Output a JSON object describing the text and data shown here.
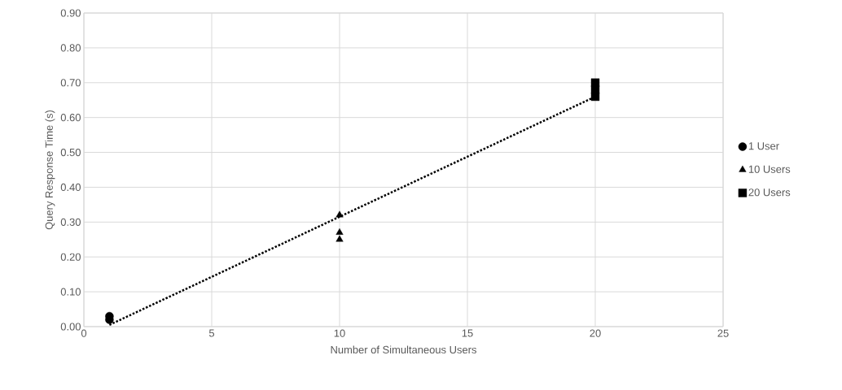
{
  "chart_data": {
    "type": "scatter",
    "xlabel": "Number of Simultaneous Users",
    "ylabel": "Query Response Time (s)",
    "series": [
      {
        "name": "1 User",
        "color": "#000000",
        "marker": "circle",
        "x": [
          1,
          1
        ],
        "values": [
          0.02,
          0.03
        ]
      },
      {
        "name": "10 Users",
        "color": "#000000",
        "marker": "triangle",
        "x": [
          10,
          10,
          10
        ],
        "values": [
          0.32,
          0.27,
          0.25
        ]
      },
      {
        "name": "20 Users",
        "color": "#000000",
        "marker": "square",
        "x": [
          20,
          20,
          20
        ],
        "values": [
          0.7,
          0.68,
          0.66
        ]
      },
      {
        "type": "line",
        "color": "#000000",
        "line_style": "dotted",
        "marker": "none",
        "x": [
          1,
          20
        ],
        "values": [
          0.005,
          0.66
        ]
      }
    ],
    "xlim": [
      0,
      25
    ],
    "xticks": [
      0,
      5,
      10,
      15,
      20,
      25
    ],
    "ylim": [
      0,
      0.9
    ],
    "yticks": [
      {
        "value": 0,
        "label": "0.00"
      },
      {
        "value": 0.1,
        "label": "0.10"
      },
      {
        "value": 0.2,
        "label": "0.20"
      },
      {
        "value": 0.3,
        "label": "0.30"
      },
      {
        "value": 0.4,
        "label": "0.40"
      },
      {
        "value": 0.5,
        "label": "0.50"
      },
      {
        "value": 0.6,
        "label": "0.60"
      },
      {
        "value": 0.7,
        "label": "0.70"
      },
      {
        "value": 0.8,
        "label": "0.80"
      },
      {
        "value": 0.9,
        "label": "0.90"
      }
    ],
    "grid": true,
    "legend": "right"
  }
}
